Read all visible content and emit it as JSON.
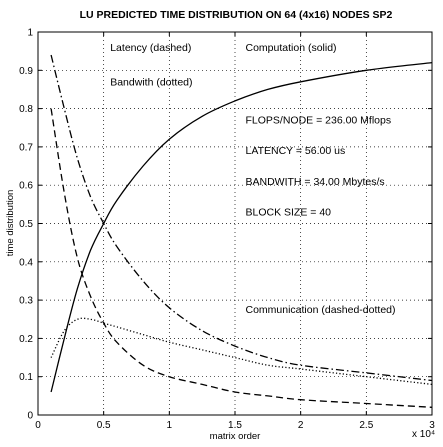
{
  "chart_data": {
    "type": "line",
    "title": "LU PREDICTED TIME DISTRIBUTION ON 64 (4x16) NODES SP2",
    "xlabel": "matrix order",
    "ylabel": "time distribution",
    "x_multiplier": "x 10⁴",
    "xlim": [
      0,
      3
    ],
    "ylim": [
      0,
      1
    ],
    "xticks": [
      0,
      0.5,
      1,
      1.5,
      2,
      2.5,
      3
    ],
    "xtick_labels": [
      "0",
      "0.5",
      "1",
      "1.5",
      "2",
      "2.5",
      "3"
    ],
    "yticks": [
      0,
      0.1,
      0.2,
      0.3,
      0.4,
      0.5,
      0.6,
      0.7,
      0.8,
      0.9,
      1
    ],
    "ytick_labels": [
      "0",
      "0.1",
      "0.2",
      "0.3",
      "0.4",
      "0.5",
      "0.6",
      "0.7",
      "0.8",
      "0.9",
      "1"
    ],
    "grid": true,
    "series": [
      {
        "style": "solid",
        "x": [
          0.1,
          0.2,
          0.3,
          0.4,
          0.5,
          0.6,
          0.8,
          1.0,
          1.25,
          1.5,
          1.75,
          2.0,
          2.5,
          3.0
        ],
        "y": [
          0.06,
          0.2,
          0.33,
          0.43,
          0.5,
          0.56,
          0.65,
          0.72,
          0.78,
          0.82,
          0.85,
          0.87,
          0.9,
          0.92
        ]
      },
      {
        "style": "dashed",
        "x": [
          0.1,
          0.2,
          0.3,
          0.4,
          0.5,
          0.6,
          0.8,
          1.0,
          1.25,
          1.5,
          1.75,
          2.0,
          2.5,
          3.0
        ],
        "y": [
          0.8,
          0.58,
          0.41,
          0.31,
          0.24,
          0.19,
          0.13,
          0.1,
          0.08,
          0.06,
          0.05,
          0.04,
          0.03,
          0.02
        ]
      },
      {
        "style": "dotted",
        "x": [
          0.1,
          0.2,
          0.3,
          0.4,
          0.5,
          0.6,
          0.8,
          1.0,
          1.25,
          1.5,
          1.75,
          2.0,
          2.5,
          3.0
        ],
        "y": [
          0.15,
          0.22,
          0.25,
          0.25,
          0.24,
          0.23,
          0.21,
          0.19,
          0.17,
          0.15,
          0.13,
          0.12,
          0.1,
          0.08
        ]
      },
      {
        "style": "dashdot",
        "x": [
          0.1,
          0.2,
          0.3,
          0.4,
          0.5,
          0.6,
          0.8,
          1.0,
          1.25,
          1.5,
          1.75,
          2.0,
          2.5,
          3.0
        ],
        "y": [
          0.94,
          0.8,
          0.67,
          0.57,
          0.5,
          0.44,
          0.35,
          0.28,
          0.22,
          0.18,
          0.15,
          0.13,
          0.11,
          0.09
        ]
      }
    ],
    "annotations": [
      {
        "text": "Latency (dashed)",
        "x": 0.55,
        "y": 0.96
      },
      {
        "text": "Computation (solid)",
        "x": 1.58,
        "y": 0.96
      },
      {
        "text": "Bandwith (dotted)",
        "x": 0.55,
        "y": 0.87
      },
      {
        "text": "FLOPS/NODE = 236.00 Mflops",
        "x": 1.58,
        "y": 0.77
      },
      {
        "text": "LATENCY = 56.00 us",
        "x": 1.58,
        "y": 0.69
      },
      {
        "text": "BANDWITH = 34.00 Mbytes/s",
        "x": 1.58,
        "y": 0.61
      },
      {
        "text": "BLOCK SIZE = 40",
        "x": 1.58,
        "y": 0.53
      },
      {
        "text": "Communication (dashed-dotted)",
        "x": 1.58,
        "y": 0.275
      }
    ]
  }
}
